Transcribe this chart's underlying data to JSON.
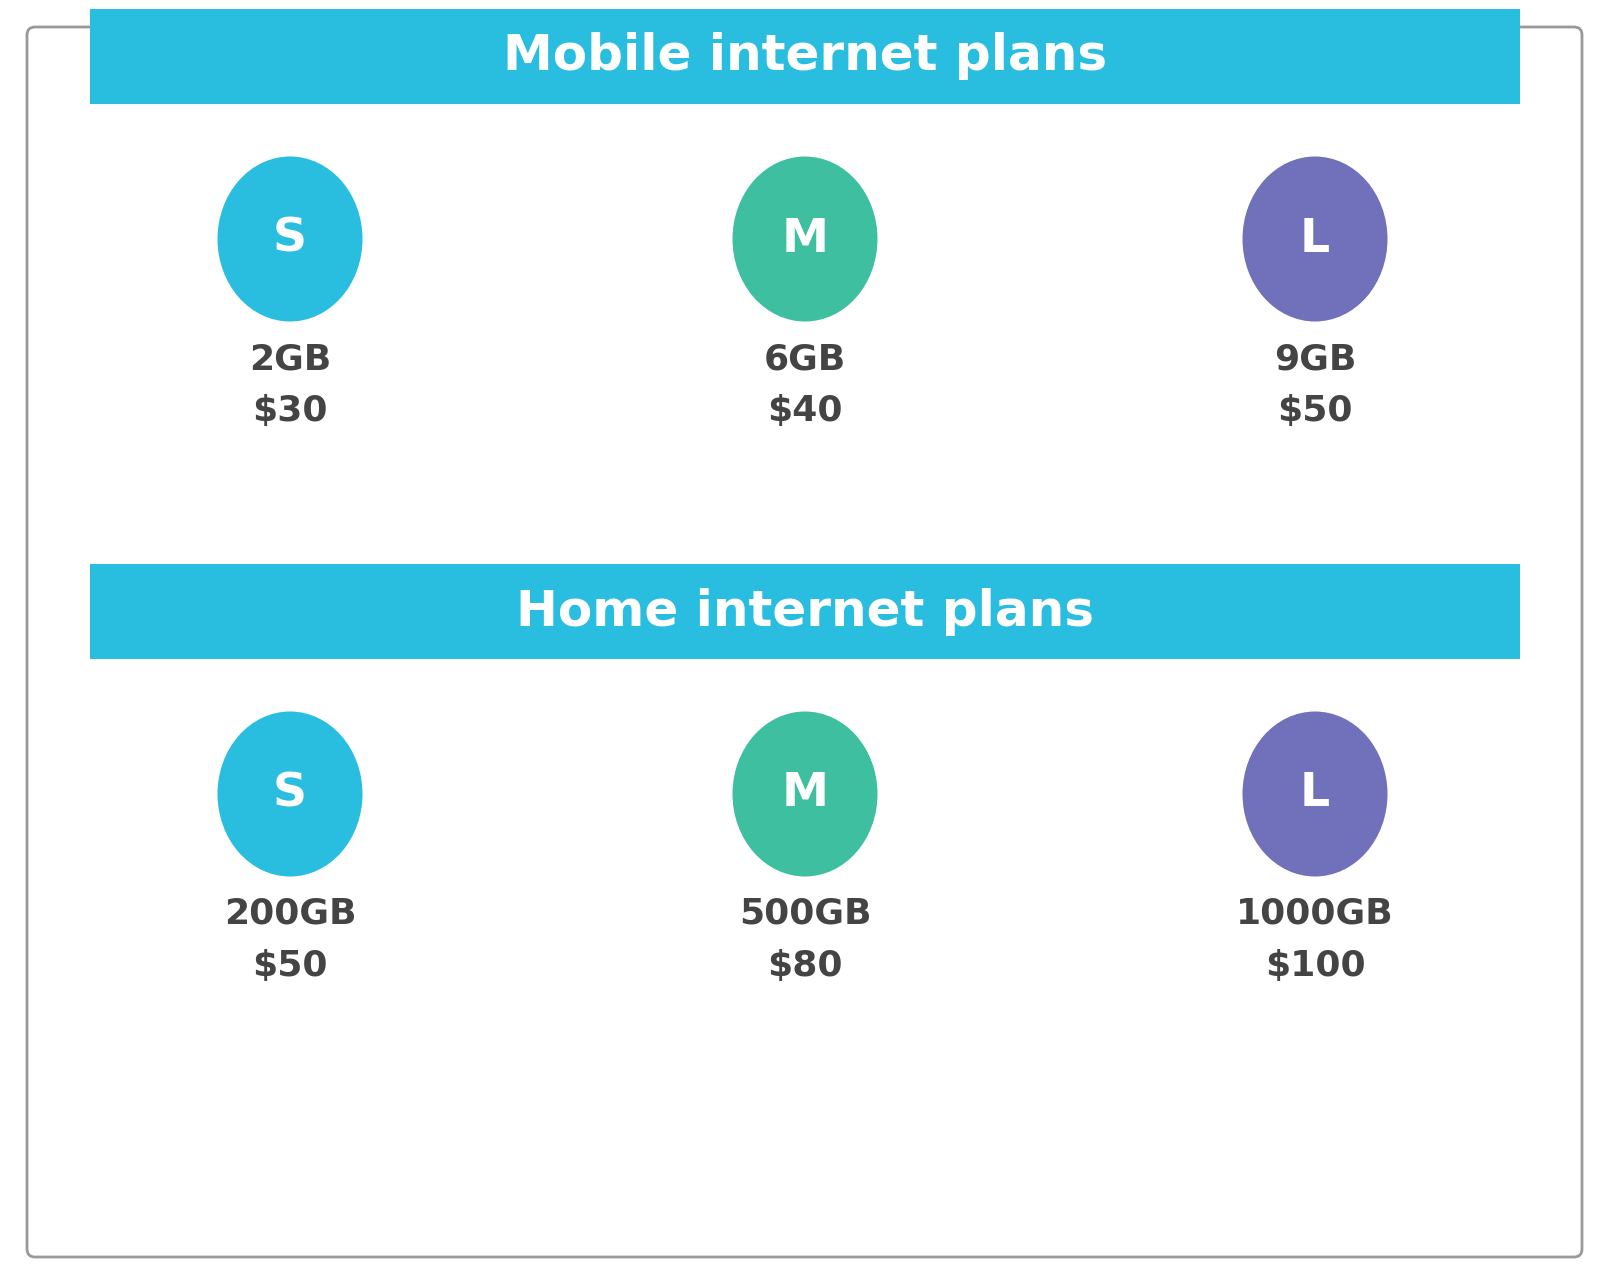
{
  "background_color": "#ffffff",
  "border_color": "#999999",
  "banner_color": "#29bde0",
  "banner_text_color": "#ffffff",
  "sections": [
    {
      "title": "Mobile internet plans",
      "plans": [
        {
          "label": "S",
          "data": "2GB",
          "price": "$30",
          "color": "#29bde0"
        },
        {
          "label": "M",
          "data": "6GB",
          "price": "$40",
          "color": "#3dbfa0"
        },
        {
          "label": "L",
          "data": "9GB",
          "price": "$50",
          "color": "#7070bb"
        }
      ]
    },
    {
      "title": "Home internet plans",
      "plans": [
        {
          "label": "S",
          "data": "200GB",
          "price": "$50",
          "color": "#29bde0"
        },
        {
          "label": "M",
          "data": "500GB",
          "price": "$80",
          "color": "#3dbfa0"
        },
        {
          "label": "L",
          "data": "1000GB",
          "price": "$100",
          "color": "#7070bb"
        }
      ]
    }
  ],
  "text_color": "#444444",
  "label_fontsize": 34,
  "data_fontsize": 26,
  "price_fontsize": 26,
  "banner_fontsize": 36,
  "figsize": [
    16.09,
    12.84
  ],
  "dpi": 100
}
